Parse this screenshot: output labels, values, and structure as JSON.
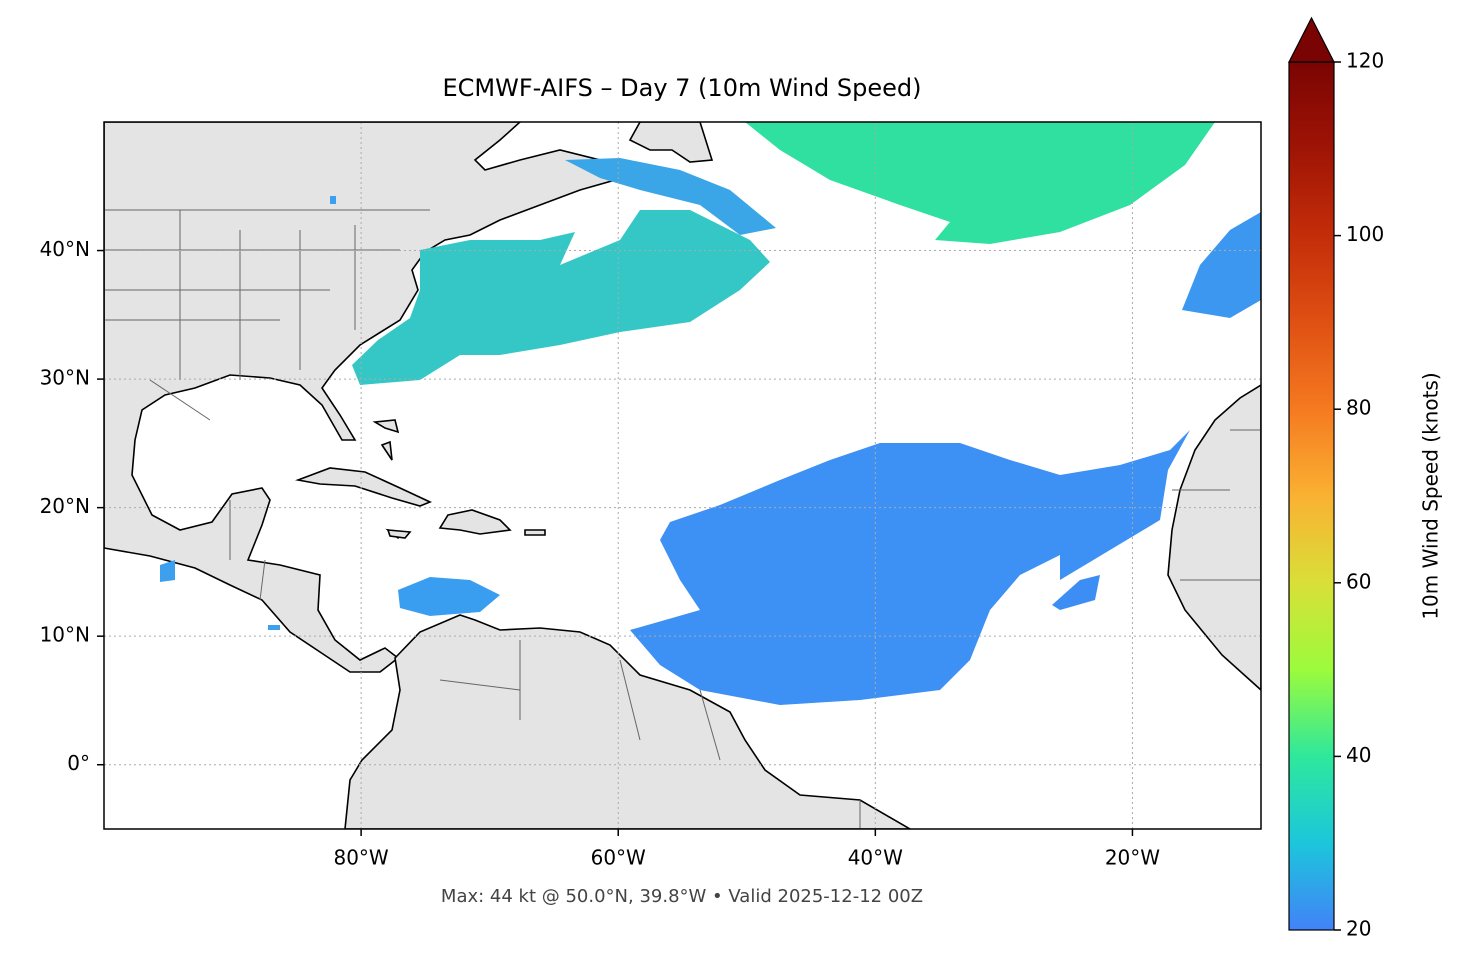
{
  "map": {
    "title": "ECMWF-AIFS – Day 7 (10m Wind Speed)",
    "footer": "Max: 44 kt @ 50.0°N, 39.8°W • Valid 2025-12-12 00Z",
    "lonlim": [
      -100,
      -10
    ],
    "latlim": [
      -5,
      50
    ],
    "lon_ticks": [
      {
        "value": -80,
        "label": "80°W"
      },
      {
        "value": -60,
        "label": "60°W"
      },
      {
        "value": -40,
        "label": "40°W"
      },
      {
        "value": -20,
        "label": "20°W"
      }
    ],
    "lat_ticks": [
      {
        "value": 0,
        "label": "0°"
      },
      {
        "value": 10,
        "label": "10°N"
      },
      {
        "value": 20,
        "label": "20°N"
      },
      {
        "value": 30,
        "label": "30°N"
      },
      {
        "value": 40,
        "label": "40°N"
      }
    ],
    "grid": true,
    "colorbar": {
      "label": "10m Wind Speed (knots)",
      "lim": [
        20,
        120
      ],
      "ticks": [
        20,
        40,
        60,
        80,
        100,
        120
      ],
      "extend": "max"
    }
  }
}
